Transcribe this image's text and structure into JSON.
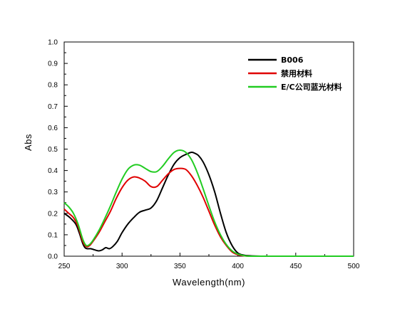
{
  "chart_data": {
    "type": "line",
    "xlabel": "Wavelength(nm)",
    "ylabel": "Abs",
    "xlim": [
      250,
      500
    ],
    "ylim": [
      0.0,
      1.0
    ],
    "xticks": [
      "250",
      "300",
      "350",
      "400",
      "450",
      "500"
    ],
    "yticks": [
      "0.0",
      "0.1",
      "0.2",
      "0.3",
      "0.4",
      "0.5",
      "0.6",
      "0.7",
      "0.8",
      "0.9",
      "1.0"
    ],
    "grid": false,
    "legend_position": "top-right",
    "series": [
      {
        "name": "B006",
        "color": "#000000",
        "x": [
          250,
          255,
          260,
          263,
          266,
          268,
          270,
          273,
          276,
          280,
          283,
          286,
          289,
          292,
          296,
          300,
          305,
          310,
          315,
          320,
          325,
          330,
          335,
          340,
          345,
          350,
          355,
          360,
          363,
          366,
          370,
          375,
          380,
          385,
          390,
          395,
          400,
          405,
          410,
          420,
          430,
          450,
          500
        ],
        "y": [
          0.2,
          0.18,
          0.15,
          0.11,
          0.06,
          0.04,
          0.035,
          0.035,
          0.03,
          0.025,
          0.03,
          0.04,
          0.035,
          0.045,
          0.07,
          0.11,
          0.15,
          0.18,
          0.205,
          0.215,
          0.225,
          0.26,
          0.32,
          0.38,
          0.43,
          0.46,
          0.475,
          0.485,
          0.48,
          0.47,
          0.44,
          0.38,
          0.3,
          0.2,
          0.11,
          0.05,
          0.015,
          0.005,
          0.002,
          0.0,
          0.0,
          0.0,
          0.0
        ]
      },
      {
        "name": "禁用材料",
        "color": "#e00000",
        "x": [
          250,
          254,
          258,
          262,
          266,
          269,
          272,
          275,
          280,
          285,
          290,
          295,
          300,
          305,
          310,
          315,
          320,
          325,
          330,
          335,
          340,
          345,
          350,
          355,
          360,
          365,
          370,
          375,
          380,
          385,
          390,
          395,
          400,
          405,
          410,
          420,
          450,
          500
        ],
        "y": [
          0.22,
          0.2,
          0.18,
          0.14,
          0.07,
          0.045,
          0.05,
          0.07,
          0.11,
          0.16,
          0.21,
          0.27,
          0.32,
          0.355,
          0.37,
          0.365,
          0.35,
          0.325,
          0.325,
          0.355,
          0.385,
          0.405,
          0.41,
          0.405,
          0.375,
          0.33,
          0.275,
          0.21,
          0.145,
          0.09,
          0.05,
          0.02,
          0.007,
          0.002,
          0.0,
          0.0,
          0.0,
          0.0
        ]
      },
      {
        "name": "E/C公司蓝光材料",
        "color": "#22cc22",
        "x": [
          250,
          254,
          258,
          262,
          266,
          269,
          272,
          275,
          280,
          285,
          290,
          295,
          300,
          305,
          310,
          315,
          320,
          325,
          330,
          335,
          340,
          345,
          350,
          355,
          360,
          365,
          370,
          375,
          380,
          385,
          390,
          395,
          400,
          405,
          410,
          420,
          450,
          500
        ],
        "y": [
          0.25,
          0.23,
          0.2,
          0.15,
          0.08,
          0.05,
          0.055,
          0.075,
          0.12,
          0.175,
          0.235,
          0.3,
          0.36,
          0.405,
          0.425,
          0.425,
          0.41,
          0.395,
          0.395,
          0.42,
          0.455,
          0.485,
          0.495,
          0.485,
          0.45,
          0.39,
          0.315,
          0.235,
          0.16,
          0.1,
          0.055,
          0.025,
          0.01,
          0.003,
          0.0,
          0.0,
          0.0,
          0.0
        ]
      }
    ]
  }
}
